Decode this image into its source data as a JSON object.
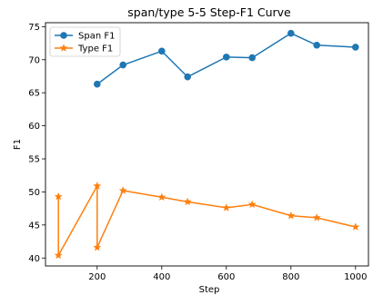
{
  "chart_data": {
    "type": "line",
    "title": "span/type 5-5 Step-F1 Curve",
    "xlabel": "Step",
    "ylabel": "F1",
    "xlim": [
      40,
      1040
    ],
    "ylim": [
      38.8,
      75.6
    ],
    "xticks": [
      200,
      400,
      600,
      800,
      1000
    ],
    "yticks": [
      40,
      45,
      50,
      55,
      60,
      65,
      70,
      75
    ],
    "legend": "top-left",
    "grid": false,
    "series": [
      {
        "name": "Span F1",
        "color": "#1f77b4",
        "marker": "circle",
        "x": [
          200,
          280,
          400,
          480,
          600,
          680,
          800,
          880,
          1000
        ],
        "y": [
          66.3,
          69.2,
          71.3,
          67.4,
          70.4,
          70.3,
          74.0,
          72.2,
          71.9
        ]
      },
      {
        "name": "Type F1",
        "color": "#ff7f0e",
        "marker": "star",
        "x": [
          80,
          80,
          200,
          200,
          280,
          400,
          480,
          600,
          680,
          800,
          880,
          1000
        ],
        "y": [
          49.3,
          40.4,
          50.9,
          41.6,
          50.2,
          49.2,
          48.5,
          47.6,
          48.1,
          46.4,
          46.1,
          44.7
        ]
      }
    ]
  }
}
